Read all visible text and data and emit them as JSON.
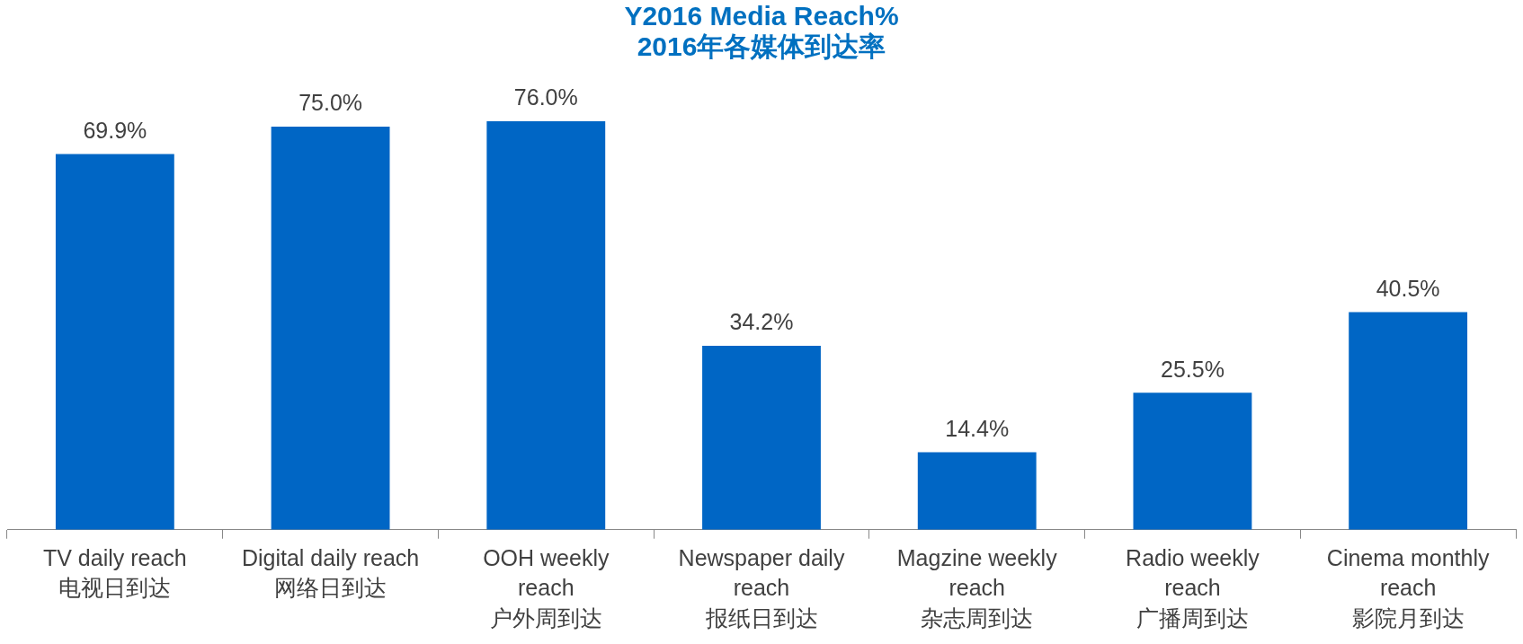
{
  "chart_data": {
    "type": "bar",
    "title": "Y2016 Media Reach%\n2016年各媒体到达率",
    "categories": [
      "TV daily reach\n电视日到达",
      "Digital daily reach\n网络日到达",
      "OOH weekly\nreach\n户外周到达",
      "Newspaper daily\nreach\n报纸日到达",
      "Magzine weekly\nreach\n杂志周到达",
      "Radio weekly\nreach\n广播周到达",
      "Cinema monthly\nreach\n影院月到达"
    ],
    "values": [
      69.9,
      75.0,
      76.0,
      34.2,
      14.4,
      25.5,
      40.5
    ],
    "value_labels": [
      "69.9%",
      "75.0%",
      "76.0%",
      "34.2%",
      "14.4%",
      "25.5%",
      "40.5%"
    ],
    "color": "#0066c5"
  }
}
